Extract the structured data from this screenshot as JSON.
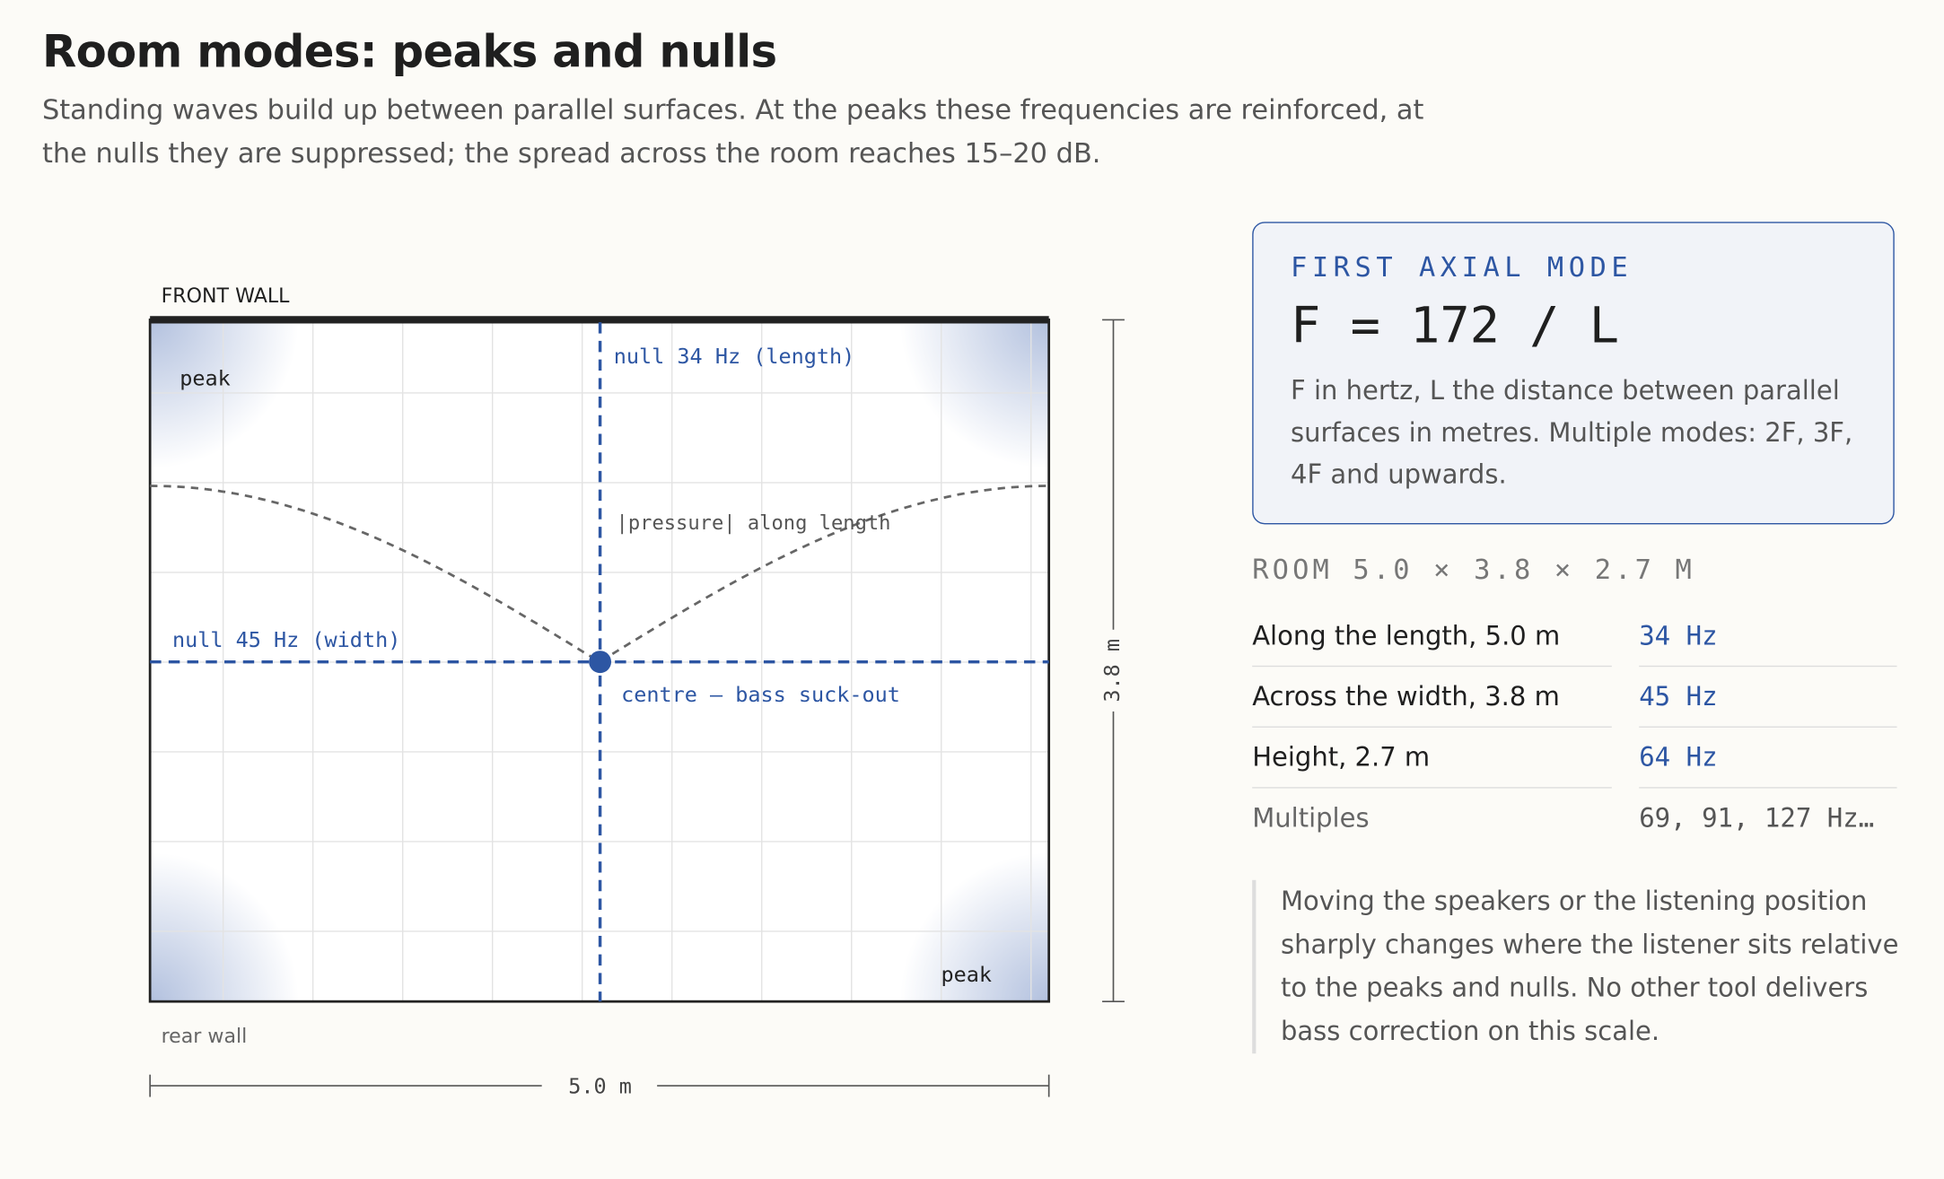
{
  "header": {
    "title": "Room modes: peaks and nulls",
    "subtitle": "Standing waves build up between parallel surfaces. At the peaks these frequencies are reinforced, at the nulls they are suppressed; the spread across the room reaches 15–20 dB."
  },
  "diagram": {
    "front_wall": "FRONT WALL",
    "rear_wall": "rear wall",
    "peak_top": "peak",
    "peak_bottom": "peak",
    "null_length": "null 34 Hz (length)",
    "null_width": "null 45 Hz (width)",
    "curve_label": "|pressure| along length",
    "centre": "centre — bass suck-out",
    "dim_length": "5.0 m",
    "dim_width": "3.8 m"
  },
  "card": {
    "label": "FIRST AXIAL MODE",
    "formula": "F = 172 / L",
    "text": "F in hertz, L the distance between parallel surfaces in metres. Multiple modes: 2F, 3F, 4F and upwards."
  },
  "room": {
    "heading": "ROOM 5.0 × 3.8 × 2.7 M",
    "rows": [
      [
        "Along the length, 5.0 m",
        "34 Hz"
      ],
      [
        "Across the width, 3.8 m",
        "45 Hz"
      ],
      [
        "Height, 2.7 m",
        "64 Hz"
      ],
      [
        "Multiples",
        "69, 91, 127 Hz…"
      ]
    ]
  },
  "note": "Moving the speakers or the listening position sharply changes where the listener sits relative to the peaks and nulls. No other tool delivers bass correction on this scale."
}
